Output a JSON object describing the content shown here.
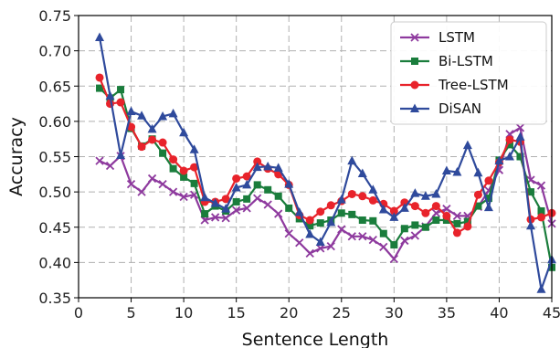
{
  "chart_data": {
    "type": "line",
    "title": "",
    "xlabel": "Sentence Length",
    "ylabel": "Accuracy",
    "xlim": [
      0,
      45
    ],
    "ylim": [
      0.35,
      0.75
    ],
    "xticks": [
      0,
      5,
      10,
      15,
      20,
      25,
      30,
      35,
      40,
      45
    ],
    "yticks": [
      "0.35",
      "0.40",
      "0.45",
      "0.50",
      "0.55",
      "0.60",
      "0.65",
      "0.70",
      "0.75"
    ],
    "grid": true,
    "legend_position": "top-right",
    "x": [
      2,
      3,
      4,
      5,
      6,
      7,
      8,
      9,
      10,
      11,
      12,
      13,
      14,
      15,
      16,
      17,
      18,
      19,
      20,
      21,
      22,
      23,
      24,
      25,
      26,
      27,
      28,
      29,
      30,
      31,
      32,
      33,
      34,
      35,
      36,
      37,
      38,
      39,
      40,
      41,
      42,
      43,
      44,
      45
    ],
    "series": [
      {
        "name": "LSTM",
        "color": "#8e3a9e",
        "marker": "x",
        "values": [
          0.544,
          0.537,
          0.551,
          0.511,
          0.5,
          0.519,
          0.511,
          0.5,
          0.493,
          0.496,
          0.46,
          0.464,
          0.463,
          0.474,
          0.477,
          0.491,
          0.482,
          0.469,
          0.441,
          0.428,
          0.413,
          0.42,
          0.423,
          0.447,
          0.437,
          0.437,
          0.432,
          0.422,
          0.405,
          0.431,
          0.438,
          0.451,
          0.47,
          0.476,
          0.466,
          0.466,
          0.479,
          0.502,
          0.531,
          0.582,
          0.591,
          0.517,
          0.509,
          0.455
        ]
      },
      {
        "name": "Bi-LSTM",
        "color": "#1a7d3c",
        "marker": "square",
        "values": [
          0.647,
          0.633,
          0.645,
          0.59,
          0.565,
          0.575,
          0.555,
          0.533,
          0.521,
          0.512,
          0.469,
          0.48,
          0.473,
          0.486,
          0.49,
          0.51,
          0.503,
          0.494,
          0.477,
          0.462,
          0.452,
          0.456,
          0.46,
          0.47,
          0.468,
          0.46,
          0.459,
          0.441,
          0.425,
          0.448,
          0.453,
          0.45,
          0.46,
          0.46,
          0.455,
          0.458,
          0.48,
          0.491,
          0.545,
          0.567,
          0.55,
          0.5,
          0.473,
          0.393
        ]
      },
      {
        "name": "Tree-LSTM",
        "color": "#e8232b",
        "marker": "circle",
        "values": [
          0.662,
          0.625,
          0.627,
          0.592,
          0.564,
          0.574,
          0.57,
          0.546,
          0.53,
          0.535,
          0.486,
          0.486,
          0.49,
          0.519,
          0.522,
          0.543,
          0.533,
          0.525,
          0.51,
          0.467,
          0.46,
          0.472,
          0.481,
          0.487,
          0.497,
          0.494,
          0.488,
          0.483,
          0.473,
          0.485,
          0.48,
          0.47,
          0.48,
          0.466,
          0.442,
          0.451,
          0.496,
          0.516,
          0.542,
          0.574,
          0.571,
          0.461,
          0.464,
          0.47
        ]
      },
      {
        "name": "DiSAN",
        "color": "#2f4a9c",
        "marker": "triangle",
        "values": [
          0.719,
          0.636,
          0.552,
          0.614,
          0.608,
          0.589,
          0.607,
          0.611,
          0.584,
          0.56,
          0.492,
          0.484,
          0.476,
          0.506,
          0.51,
          0.535,
          0.536,
          0.534,
          0.511,
          0.471,
          0.44,
          0.429,
          0.457,
          0.489,
          0.544,
          0.526,
          0.503,
          0.475,
          0.464,
          0.477,
          0.498,
          0.494,
          0.497,
          0.53,
          0.528,
          0.566,
          0.527,
          0.478,
          0.544,
          0.55,
          0.578,
          0.452,
          0.362,
          0.404
        ]
      }
    ]
  }
}
